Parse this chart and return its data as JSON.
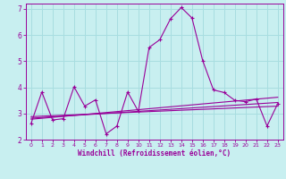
{
  "xlabel": "Windchill (Refroidissement éolien,°C)",
  "xlim": [
    -0.5,
    23.5
  ],
  "ylim": [
    2.0,
    7.2
  ],
  "yticks": [
    2,
    3,
    4,
    5,
    6,
    7
  ],
  "xticks": [
    0,
    1,
    2,
    3,
    4,
    5,
    6,
    7,
    8,
    9,
    10,
    11,
    12,
    13,
    14,
    15,
    16,
    17,
    18,
    19,
    20,
    21,
    22,
    23
  ],
  "bg_color": "#c8eff0",
  "grid_color": "#a8dde0",
  "line_color": "#990099",
  "line1_x": [
    0,
    1,
    2,
    3,
    4,
    5,
    6,
    7,
    8,
    9,
    10,
    11,
    12,
    13,
    14,
    15,
    16,
    17,
    18,
    19,
    20,
    21,
    22,
    23
  ],
  "line1_y": [
    2.62,
    3.82,
    2.75,
    2.8,
    4.02,
    3.28,
    3.52,
    2.22,
    2.52,
    3.82,
    3.08,
    5.52,
    5.82,
    6.62,
    7.05,
    6.65,
    5.02,
    3.9,
    3.8,
    3.5,
    3.45,
    3.55,
    2.52,
    3.38
  ],
  "line2_x": [
    0,
    23
  ],
  "line2_y": [
    2.78,
    3.62
  ],
  "line3_x": [
    0,
    23
  ],
  "line3_y": [
    2.82,
    3.42
  ],
  "line4_x": [
    0,
    23
  ],
  "line4_y": [
    2.88,
    3.28
  ]
}
